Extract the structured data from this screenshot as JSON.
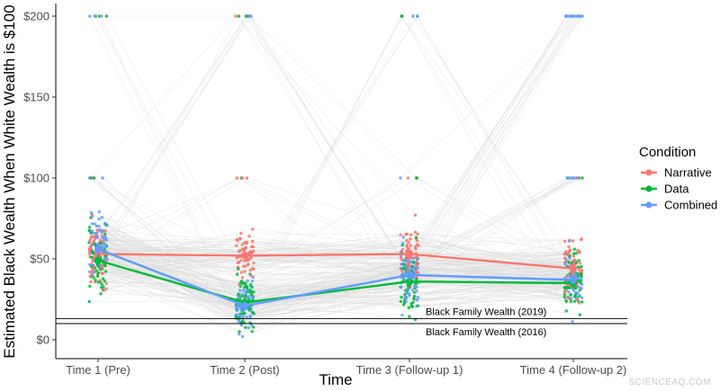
{
  "chart_data": {
    "type": "line",
    "title": "",
    "xlabel": "Time",
    "ylabel": "Estimated Black Wealth When White Wealth is $100",
    "categories": [
      "Time 1 (Pre)",
      "Time 2 (Post)",
      "Time 3 (Follow-up 1)",
      "Time 4 (Follow-up 2)"
    ],
    "ylim": [
      -5,
      210
    ],
    "y_ticks": [
      0,
      50,
      100,
      150,
      200
    ],
    "y_tick_labels": [
      "$0",
      "$50",
      "$100",
      "$150",
      "$200"
    ],
    "grid": false,
    "legend": {
      "title": "Condition",
      "position": "right"
    },
    "series": [
      {
        "name": "Narrative",
        "color": "#F8766D",
        "values": [
          53,
          52,
          53,
          44
        ],
        "errors": [
          4,
          4,
          4,
          4
        ]
      },
      {
        "name": "Data",
        "color": "#00BA38",
        "values": [
          49,
          23,
          36,
          35
        ],
        "errors": [
          4,
          3,
          3,
          3
        ]
      },
      {
        "name": "Combined",
        "color": "#619CFF",
        "values": [
          56,
          21,
          40,
          37
        ],
        "errors": [
          4,
          3,
          4,
          3
        ]
      }
    ],
    "reference_lines": [
      {
        "label": "Black Family Wealth (2019)",
        "value": 13
      },
      {
        "label": "Black Family Wealth (2016)",
        "value": 10
      }
    ],
    "individual_points": "jittered raw responses per participant, with faint grey lines connecting each participant across time points"
  },
  "watermark": "SCIENCEAQ.COM"
}
